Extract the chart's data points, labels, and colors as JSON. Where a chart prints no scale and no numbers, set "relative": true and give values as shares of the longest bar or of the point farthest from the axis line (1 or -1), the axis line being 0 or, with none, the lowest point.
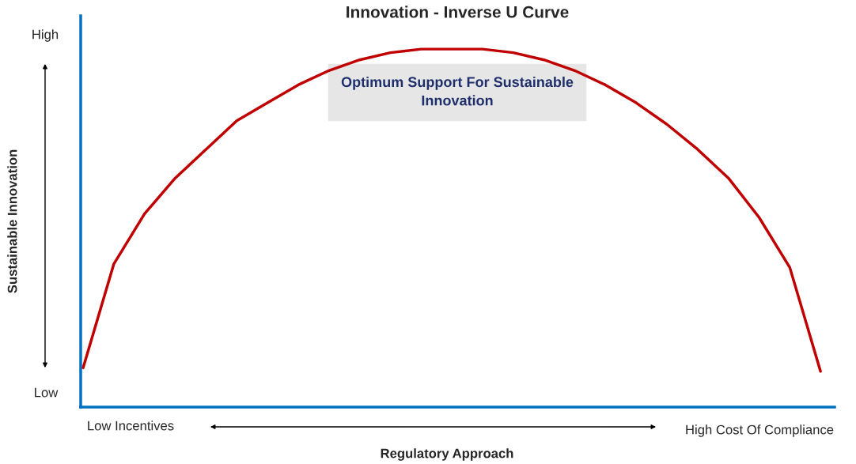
{
  "chart_data": {
    "type": "line",
    "relative": true,
    "title": "Innovation - Inverse U Curve",
    "xlabel": "Regulatory Approach",
    "ylabel": "Sustainable Innovation",
    "categories": [
      null,
      null,
      null,
      null,
      null,
      null,
      null,
      null,
      null,
      null,
      null,
      null,
      null,
      null,
      null,
      null,
      null,
      null,
      null,
      null,
      null,
      null,
      null,
      null,
      null
    ],
    "series": [
      {
        "color": "#c00000",
        "values": [
          0.11,
          0.4,
          0.54,
          0.64,
          0.72,
          0.8,
          0.85,
          0.9,
          0.94,
          0.97,
          0.99,
          1.0,
          1.0,
          1.0,
          0.99,
          0.97,
          0.94,
          0.9,
          0.85,
          0.79,
          0.72,
          0.64,
          0.53,
          0.39,
          0.1
        ]
      }
    ],
    "annotations": [
      "High",
      "Low",
      "Low Incentives",
      "High Cost Of Compliance",
      "Optimum Support For Sustainable Innovation"
    ]
  }
}
